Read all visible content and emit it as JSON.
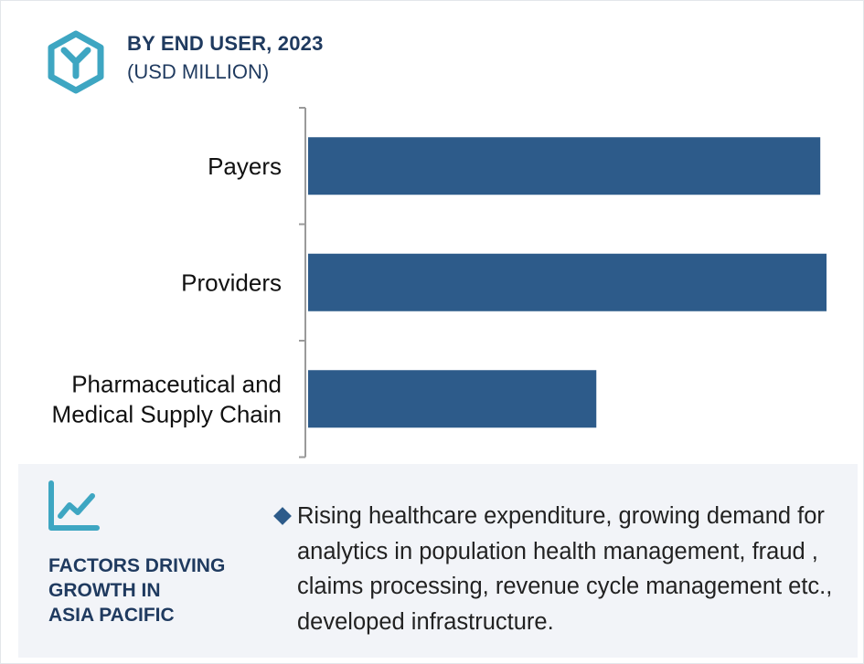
{
  "header": {
    "title": "BY END USER, 2023",
    "subtitle": "(USD MILLION)",
    "icon": "hexagon-y-logo-icon"
  },
  "chart_data": {
    "type": "bar",
    "orientation": "horizontal",
    "title": "BY END USER, 2023",
    "subtitle": "(USD MILLION)",
    "categories": [
      [
        "Payers"
      ],
      [
        "Providers"
      ],
      [
        "Pharmaceutical and",
        "Medical Supply Chain"
      ]
    ],
    "values": [
      98.8,
      100,
      55.6
    ],
    "xlim": [
      0,
      100
    ],
    "grid": false,
    "legend": "none",
    "bar_color": "#2d5b8a"
  },
  "factors": {
    "icon": "line-chart-trend-icon",
    "title_lines": [
      "FACTORS DRIVING",
      "GROWTH IN",
      "ASIA PACIFIC"
    ],
    "bullet": "Rising healthcare expenditure, growing demand for analytics in population health management, fraud , claims processing, revenue cycle management etc., developed infrastructure."
  },
  "colors": {
    "accent": "#2d5b8a",
    "teal": "#3ea6c2",
    "navy": "#1f3a5f",
    "panel": "#f2f4f8"
  }
}
